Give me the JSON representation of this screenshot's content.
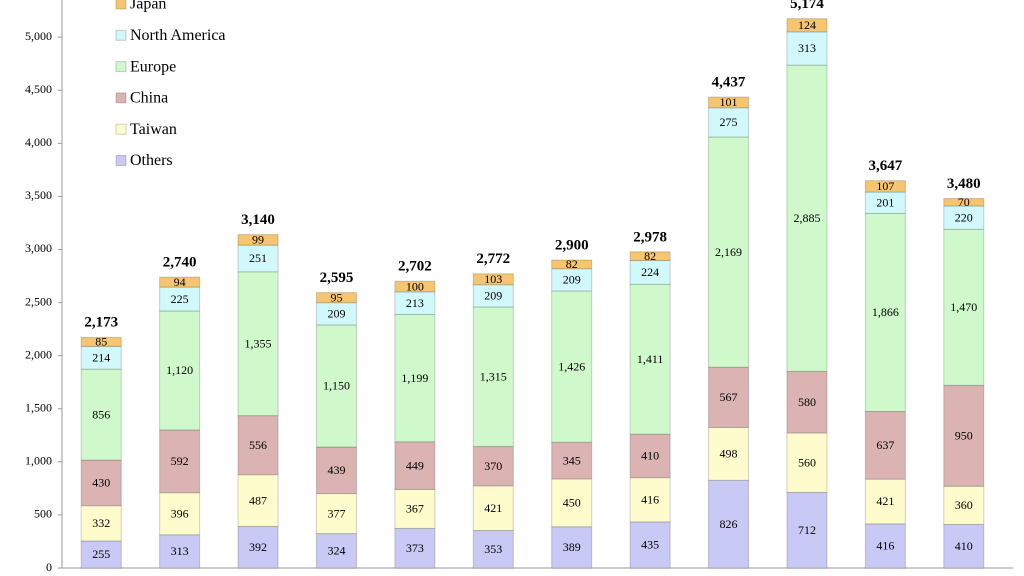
{
  "chart_data": {
    "type": "stacked_bar",
    "categories": [
      null,
      null,
      null,
      null,
      null,
      null,
      null,
      null,
      null,
      null,
      null,
      null
    ],
    "series": [
      {
        "name": "Others",
        "color": "#c9c9f6",
        "values": [
          255,
          313,
          392,
          324,
          373,
          353,
          389,
          435,
          826,
          712,
          416,
          410
        ]
      },
      {
        "name": "Taiwan",
        "color": "#fefccd",
        "values": [
          332,
          396,
          487,
          377,
          367,
          421,
          450,
          416,
          498,
          560,
          421,
          360
        ]
      },
      {
        "name": "China",
        "color": "#dbb3b3",
        "values": [
          430,
          592,
          556,
          439,
          449,
          370,
          345,
          410,
          567,
          580,
          637,
          950
        ]
      },
      {
        "name": "Europe",
        "color": "#cff9cb",
        "values": [
          856,
          1120,
          1355,
          1150,
          1199,
          1315,
          1426,
          1411,
          2169,
          2885,
          1866,
          1470
        ],
        "value_labels": [
          "856",
          "1,120",
          "1,355",
          "1,150",
          "1,199",
          "1,315",
          "1,426",
          "1,411",
          "2,169",
          "2,885",
          "1,866",
          "1,470"
        ]
      },
      {
        "name": "North America",
        "color": "#d1f8fb",
        "values": [
          214,
          225,
          251,
          209,
          213,
          209,
          209,
          224,
          275,
          313,
          201,
          220
        ]
      },
      {
        "name": "Japan",
        "color": "#f6c56f",
        "values": [
          85,
          94,
          99,
          95,
          100,
          103,
          82,
          82,
          101,
          124,
          107,
          70
        ]
      }
    ],
    "totals": {
      "values": [
        2173,
        2740,
        3140,
        2595,
        2702,
        2772,
        2900,
        2978,
        4437,
        5174,
        3647,
        3480
      ],
      "value_labels": [
        "2,173",
        "2,740",
        "3,140",
        "2,595",
        "2,702",
        "2,772",
        "2,900",
        "2,978",
        "4,437",
        "5,174",
        "3,647",
        "3,480"
      ]
    },
    "ylim": [
      0,
      5350
    ],
    "yticks": [
      0,
      500,
      {
        "value": 1000,
        "label": "1,000"
      },
      {
        "value": 1500,
        "label": "1,500"
      },
      {
        "value": 2000,
        "label": "2,000"
      },
      {
        "value": 2500,
        "label": "2,500"
      },
      {
        "value": 3000,
        "label": "3,000"
      },
      {
        "value": 3500,
        "label": "3,500"
      },
      {
        "value": 4000,
        "label": "4,000"
      },
      {
        "value": 4500,
        "label": "4,500"
      },
      {
        "value": 5000,
        "label": "5,000"
      }
    ],
    "legend": "upper left"
  }
}
